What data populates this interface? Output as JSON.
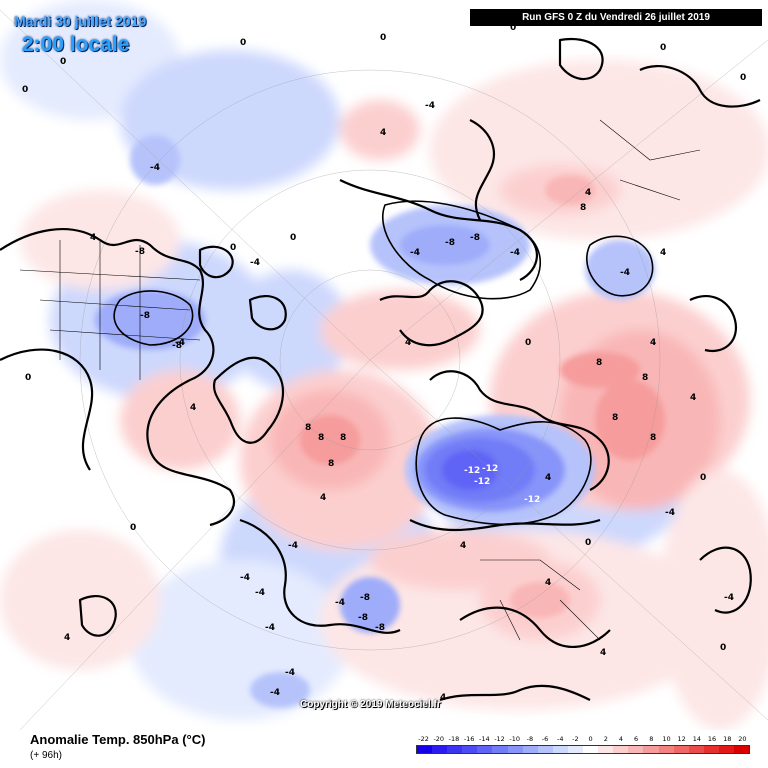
{
  "header": {
    "date_label": "Mardi 30 juillet 2019",
    "time_label": "2:00 locale",
    "run_label": "Run GFS 0 Z du Vendredi 26 juillet 2019"
  },
  "footer": {
    "parameter": "Anomalie Temp. 850hPa (°C)",
    "lead_time": "(+ 96h)",
    "copyright": "Copyright © 2019 Meteociel.fr"
  },
  "legend": {
    "ticks": [
      "-22",
      "-20",
      "-18",
      "-16",
      "-14",
      "-12",
      "-10",
      "-8",
      "-6",
      "-4",
      "-2",
      "0",
      "2",
      "4",
      "6",
      "8",
      "10",
      "12",
      "14",
      "16",
      "18",
      "20"
    ],
    "colors": [
      "#1400e6",
      "#2b1bf0",
      "#3d34f2",
      "#4d4cf4",
      "#5f64f6",
      "#717cf7",
      "#8794f9",
      "#9eacfa",
      "#b6c3fb",
      "#cdd8fd",
      "#e4ebfe",
      "#ffffff",
      "#fde6e6",
      "#fccfcf",
      "#f9b6b6",
      "#f69c9c",
      "#f38282",
      "#ef6767",
      "#eb4b4b",
      "#e63030",
      "#e01818",
      "#d80000"
    ]
  },
  "map": {
    "contour_labels": [
      {
        "text": "0"
      },
      {
        "text": "0"
      },
      {
        "text": "0"
      },
      {
        "text": "0"
      },
      {
        "text": "0"
      },
      {
        "text": "0"
      },
      {
        "text": "0"
      },
      {
        "text": "0"
      },
      {
        "text": "0"
      },
      {
        "text": "0"
      },
      {
        "text": "0"
      },
      {
        "text": "0"
      },
      {
        "text": "0"
      },
      {
        "text": "0"
      },
      {
        "text": "0"
      },
      {
        "text": "0"
      },
      {
        "text": "-4"
      },
      {
        "text": "-4"
      },
      {
        "text": "-4"
      },
      {
        "text": "-4"
      },
      {
        "text": "-4"
      },
      {
        "text": "-4"
      },
      {
        "text": "-4"
      },
      {
        "text": "-4"
      },
      {
        "text": "-4"
      },
      {
        "text": "-4"
      },
      {
        "text": "-4"
      },
      {
        "text": "-4"
      },
      {
        "text": "-4"
      },
      {
        "text": "-4"
      },
      {
        "text": "-4"
      },
      {
        "text": "-4"
      },
      {
        "text": "-8"
      },
      {
        "text": "-8"
      },
      {
        "text": "-8"
      },
      {
        "text": "-8"
      },
      {
        "text": "-8"
      },
      {
        "text": "-8"
      },
      {
        "text": "-8"
      },
      {
        "text": "-8"
      },
      {
        "text": "-12"
      },
      {
        "text": "-12"
      },
      {
        "text": "-12"
      },
      {
        "text": "-12"
      },
      {
        "text": "4"
      },
      {
        "text": "4"
      },
      {
        "text": "4"
      },
      {
        "text": "4"
      },
      {
        "text": "4"
      },
      {
        "text": "4"
      },
      {
        "text": "4"
      },
      {
        "text": "4"
      },
      {
        "text": "4"
      },
      {
        "text": "4"
      },
      {
        "text": "4"
      },
      {
        "text": "4"
      },
      {
        "text": "4"
      },
      {
        "text": "4"
      },
      {
        "text": "4"
      },
      {
        "text": "8"
      },
      {
        "text": "8"
      },
      {
        "text": "8"
      },
      {
        "text": "8"
      },
      {
        "text": "8"
      },
      {
        "text": "8"
      },
      {
        "text": "8"
      },
      {
        "text": "8"
      },
      {
        "text": "8"
      }
    ]
  }
}
